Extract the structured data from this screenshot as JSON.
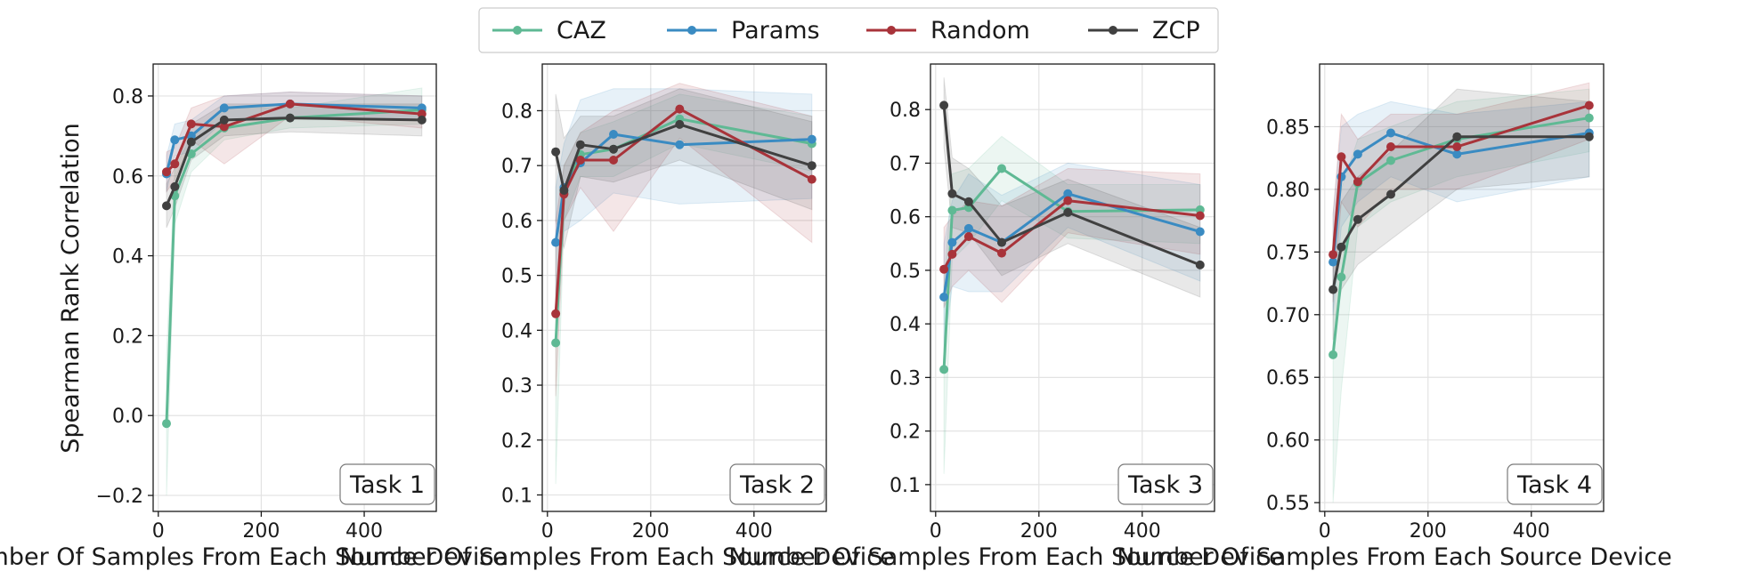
{
  "legend": [
    {
      "name": "CAZ",
      "color": "#5fb994"
    },
    {
      "name": "Params",
      "color": "#3a8bc2"
    },
    {
      "name": "Random",
      "color": "#a8333a"
    },
    {
      "name": "ZCP",
      "color": "#404040"
    }
  ],
  "shared_ylabel": "Spearman Rank Correlation",
  "chart_data": [
    {
      "type": "line",
      "title": "Task 1",
      "xlabel": "Number Of Samples From Each Source Device",
      "ylabel": "Spearman Rank Correlation",
      "xlim": [
        -10,
        540
      ],
      "ylim": [
        -0.24,
        0.88
      ],
      "xticks": [
        0,
        200,
        400
      ],
      "yticks": [
        -0.2,
        0.0,
        0.2,
        0.4,
        0.6,
        0.8
      ],
      "ytick_labels": [
        "−0.2",
        "0.0",
        "0.2",
        "0.4",
        "0.6",
        "0.8"
      ],
      "grid": true,
      "label_position": "bottom-right",
      "x": [
        16,
        32,
        64,
        128,
        256,
        512
      ],
      "series": [
        {
          "name": "CAZ",
          "color": "#5fb994",
          "values": [
            -0.02,
            0.55,
            0.655,
            0.72,
            0.745,
            0.765
          ],
          "lower": [
            -0.2,
            0.48,
            0.61,
            0.69,
            0.72,
            0.73
          ],
          "upper": [
            0.15,
            0.62,
            0.7,
            0.77,
            0.77,
            0.82
          ]
        },
        {
          "name": "Params",
          "color": "#3a8bc2",
          "values": [
            0.605,
            0.69,
            0.7,
            0.77,
            0.78,
            0.77
          ],
          "lower": [
            0.56,
            0.65,
            0.66,
            0.74,
            0.75,
            0.74
          ],
          "upper": [
            0.65,
            0.73,
            0.74,
            0.8,
            0.81,
            0.8
          ]
        },
        {
          "name": "Random",
          "color": "#a8333a",
          "values": [
            0.61,
            0.63,
            0.73,
            0.723,
            0.78,
            0.755
          ],
          "lower": [
            0.56,
            0.59,
            0.69,
            0.63,
            0.75,
            0.72
          ],
          "upper": [
            0.66,
            0.67,
            0.77,
            0.8,
            0.81,
            0.8
          ]
        },
        {
          "name": "ZCP",
          "color": "#404040",
          "values": [
            0.525,
            0.573,
            0.685,
            0.74,
            0.745,
            0.74
          ],
          "lower": [
            0.47,
            0.52,
            0.64,
            0.7,
            0.71,
            0.7
          ],
          "upper": [
            0.58,
            0.62,
            0.73,
            0.78,
            0.78,
            0.78
          ]
        }
      ]
    },
    {
      "type": "line",
      "title": "Task 2",
      "xlabel": "Number Of Samples From Each Source Device",
      "ylabel": "",
      "xlim": [
        -10,
        540
      ],
      "ylim": [
        0.07,
        0.885
      ],
      "xticks": [
        0,
        200,
        400
      ],
      "yticks": [
        0.1,
        0.2,
        0.3,
        0.4,
        0.5,
        0.6,
        0.7,
        0.8
      ],
      "ytick_labels": [
        "0.1",
        "0.2",
        "0.3",
        "0.4",
        "0.5",
        "0.6",
        "0.7",
        "0.8"
      ],
      "grid": true,
      "label_position": "bottom-right",
      "x": [
        16,
        32,
        64,
        128,
        256,
        512
      ],
      "series": [
        {
          "name": "CAZ",
          "color": "#5fb994",
          "values": [
            0.377,
            0.65,
            0.72,
            0.73,
            0.785,
            0.74
          ],
          "lower": [
            0.12,
            0.6,
            0.68,
            0.68,
            0.74,
            0.69
          ],
          "upper": [
            0.55,
            0.7,
            0.76,
            0.78,
            0.83,
            0.79
          ]
        },
        {
          "name": "Params",
          "color": "#3a8bc2",
          "values": [
            0.56,
            0.66,
            0.705,
            0.757,
            0.738,
            0.748
          ],
          "lower": [
            0.45,
            0.58,
            0.6,
            0.65,
            0.63,
            0.64
          ],
          "upper": [
            0.66,
            0.74,
            0.82,
            0.84,
            0.84,
            0.83
          ]
        },
        {
          "name": "Random",
          "color": "#a8333a",
          "values": [
            0.43,
            0.648,
            0.71,
            0.71,
            0.803,
            0.675
          ],
          "lower": [
            0.28,
            0.6,
            0.66,
            0.58,
            0.75,
            0.56
          ],
          "upper": [
            0.6,
            0.7,
            0.76,
            0.8,
            0.85,
            0.79
          ]
        },
        {
          "name": "ZCP",
          "color": "#404040",
          "values": [
            0.725,
            0.655,
            0.738,
            0.73,
            0.775,
            0.7
          ],
          "lower": [
            0.6,
            0.55,
            0.68,
            0.67,
            0.71,
            0.62
          ],
          "upper": [
            0.83,
            0.75,
            0.79,
            0.79,
            0.84,
            0.78
          ]
        }
      ]
    },
    {
      "type": "line",
      "title": "Task 3",
      "xlabel": "Number Of Samples From Each Source Device",
      "ylabel": "",
      "xlim": [
        -10,
        540
      ],
      "ylim": [
        0.05,
        0.885
      ],
      "xticks": [
        0,
        200,
        400
      ],
      "yticks": [
        0.1,
        0.2,
        0.3,
        0.4,
        0.5,
        0.6,
        0.7,
        0.8
      ],
      "ytick_labels": [
        "0.1",
        "0.2",
        "0.3",
        "0.4",
        "0.5",
        "0.6",
        "0.7",
        "0.8"
      ],
      "grid": true,
      "label_position": "bottom-right",
      "x": [
        16,
        32,
        64,
        128,
        256,
        512
      ],
      "series": [
        {
          "name": "CAZ",
          "color": "#5fb994",
          "values": [
            0.315,
            0.612,
            0.617,
            0.69,
            0.61,
            0.613
          ],
          "lower": [
            0.12,
            0.52,
            0.55,
            0.63,
            0.56,
            0.55
          ],
          "upper": [
            0.47,
            0.68,
            0.69,
            0.75,
            0.66,
            0.66
          ]
        },
        {
          "name": "Params",
          "color": "#3a8bc2",
          "values": [
            0.45,
            0.552,
            0.578,
            0.552,
            0.643,
            0.572
          ],
          "lower": [
            0.35,
            0.47,
            0.46,
            0.46,
            0.58,
            0.48
          ],
          "upper": [
            0.55,
            0.63,
            0.68,
            0.64,
            0.7,
            0.66
          ]
        },
        {
          "name": "Random",
          "color": "#a8333a",
          "values": [
            0.502,
            0.53,
            0.563,
            0.532,
            0.63,
            0.602
          ],
          "lower": [
            0.43,
            0.47,
            0.5,
            0.44,
            0.57,
            0.53
          ],
          "upper": [
            0.58,
            0.6,
            0.63,
            0.62,
            0.69,
            0.68
          ]
        },
        {
          "name": "ZCP",
          "color": "#404040",
          "values": [
            0.808,
            0.643,
            0.628,
            0.552,
            0.608,
            0.51
          ],
          "lower": [
            0.73,
            0.58,
            0.57,
            0.49,
            0.55,
            0.45
          ],
          "upper": [
            0.86,
            0.71,
            0.69,
            0.62,
            0.67,
            0.58
          ]
        }
      ]
    },
    {
      "type": "line",
      "title": "Task 4",
      "xlabel": "Number Of Samples From Each Source Device",
      "ylabel": "",
      "xlim": [
        -10,
        540
      ],
      "ylim": [
        0.543,
        0.9
      ],
      "xticks": [
        0,
        200,
        400
      ],
      "yticks": [
        0.55,
        0.6,
        0.65,
        0.7,
        0.75,
        0.8,
        0.85
      ],
      "ytick_labels": [
        "0.55",
        "0.60",
        "0.65",
        "0.70",
        "0.75",
        "0.80",
        "0.85"
      ],
      "grid": true,
      "label_position": "bottom-right",
      "x": [
        16,
        32,
        64,
        128,
        256,
        512
      ],
      "series": [
        {
          "name": "CAZ",
          "color": "#5fb994",
          "values": [
            0.668,
            0.73,
            0.805,
            0.823,
            0.84,
            0.857
          ],
          "lower": [
            0.55,
            0.64,
            0.77,
            0.79,
            0.81,
            0.83
          ],
          "upper": [
            0.76,
            0.8,
            0.84,
            0.85,
            0.87,
            0.88
          ]
        },
        {
          "name": "Params",
          "color": "#3a8bc2",
          "values": [
            0.742,
            0.81,
            0.828,
            0.845,
            0.828,
            0.845
          ],
          "lower": [
            0.7,
            0.77,
            0.79,
            0.81,
            0.79,
            0.81
          ],
          "upper": [
            0.78,
            0.85,
            0.86,
            0.87,
            0.86,
            0.87
          ]
        },
        {
          "name": "Random",
          "color": "#a8333a",
          "values": [
            0.748,
            0.826,
            0.806,
            0.834,
            0.834,
            0.867
          ],
          "lower": [
            0.71,
            0.79,
            0.77,
            0.8,
            0.8,
            0.84
          ],
          "upper": [
            0.78,
            0.86,
            0.84,
            0.86,
            0.86,
            0.885
          ]
        },
        {
          "name": "ZCP",
          "color": "#404040",
          "values": [
            0.72,
            0.754,
            0.776,
            0.796,
            0.842,
            0.842
          ],
          "lower": [
            0.68,
            0.72,
            0.74,
            0.76,
            0.8,
            0.81
          ],
          "upper": [
            0.76,
            0.79,
            0.81,
            0.83,
            0.88,
            0.87
          ]
        }
      ]
    }
  ]
}
